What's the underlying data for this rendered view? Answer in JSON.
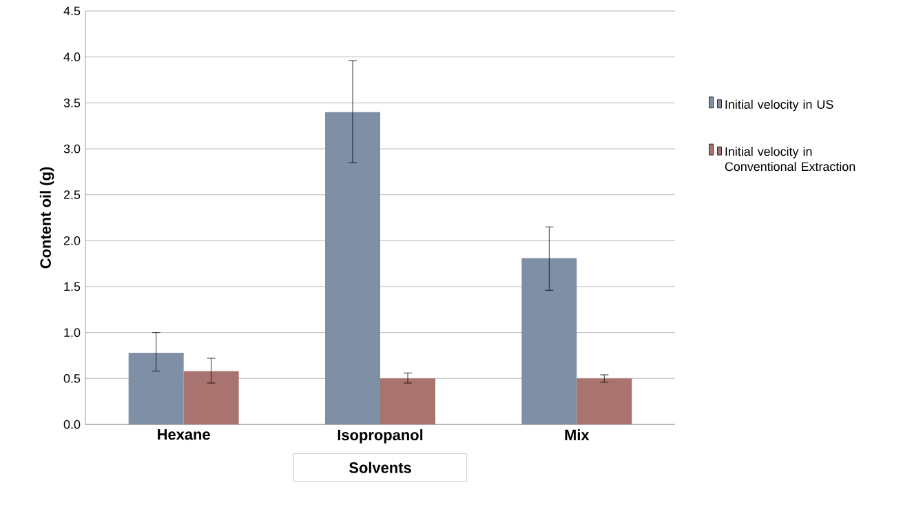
{
  "chart_data": {
    "type": "bar",
    "xlabel": "Solvents",
    "ylabel": "Content oil (g)",
    "categories": [
      "Hexane",
      "Isopropanol",
      "Mix"
    ],
    "series": [
      {
        "name": "Initial velocity in US",
        "color": "#7f8fa6",
        "values": [
          0.78,
          3.4,
          1.81
        ],
        "errors": [
          [
            0.58,
            1.0
          ],
          [
            2.85,
            3.96
          ],
          [
            1.46,
            2.15
          ]
        ]
      },
      {
        "name": "Initial velocity in Conventional Extraction",
        "color": "#a97370",
        "values": [
          0.58,
          0.5,
          0.5
        ],
        "errors": [
          [
            0.45,
            0.72
          ],
          [
            0.45,
            0.56
          ],
          [
            0.46,
            0.54
          ]
        ]
      }
    ],
    "ylim": [
      0,
      4.5
    ],
    "yticks": [
      {
        "value": 0,
        "label": "0.0"
      },
      {
        "value": 0.5,
        "label": "0.5"
      },
      {
        "value": 1,
        "label": "1.0"
      },
      {
        "value": 1.5,
        "label": "1.5"
      },
      {
        "value": 2,
        "label": "2.0"
      },
      {
        "value": 2.5,
        "label": "2.5"
      },
      {
        "value": 3,
        "label": "3.0"
      },
      {
        "value": 3.5,
        "label": "3.5"
      },
      {
        "value": 4,
        "label": "4.0"
      },
      {
        "value": 4.5,
        "label": "4.5"
      }
    ],
    "grid": "y",
    "legend": "right"
  }
}
